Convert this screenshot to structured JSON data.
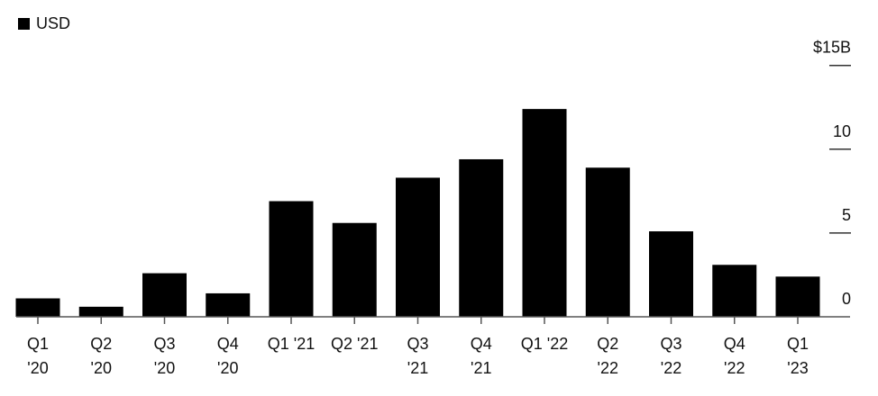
{
  "chart_data": {
    "type": "bar",
    "title": "",
    "xlabel": "",
    "ylabel": "",
    "legend": {
      "entries": [
        "USD"
      ],
      "placement": "top-left"
    },
    "categories": [
      [
        "Q1",
        "'20"
      ],
      [
        "Q2",
        "'20"
      ],
      [
        "Q3",
        "'20"
      ],
      [
        "Q4",
        "'20"
      ],
      [
        "Q1 '21"
      ],
      [
        "Q2 '21"
      ],
      [
        "Q3",
        "'21"
      ],
      [
        "Q4",
        "'21"
      ],
      [
        "Q1 '22"
      ],
      [
        "Q2",
        "'22"
      ],
      [
        "Q3",
        "'22"
      ],
      [
        "Q4",
        "'22"
      ],
      [
        "Q1",
        "'23"
      ]
    ],
    "series": [
      {
        "name": "USD",
        "values": [
          1.1,
          0.6,
          2.6,
          1.4,
          6.9,
          5.6,
          8.3,
          9.4,
          12.4,
          8.9,
          5.1,
          3.1,
          2.4
        ]
      }
    ],
    "ylim": [
      0,
      15
    ],
    "yticks": [
      0,
      5,
      10,
      15
    ],
    "ytick_labels": [
      "0",
      "5",
      "10",
      "$15B"
    ],
    "grid": false,
    "colors": {
      "bar": "#000000",
      "axis": "#555555"
    }
  }
}
